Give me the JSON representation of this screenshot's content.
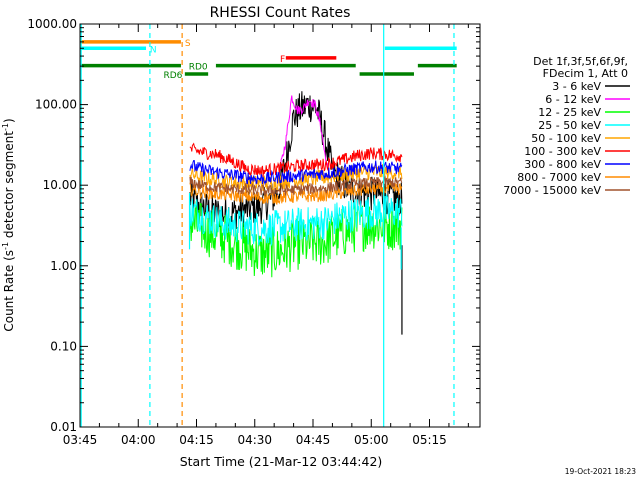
{
  "chart_data": {
    "type": "line",
    "title": "RHESSI Count Rates",
    "xlabel": "Start Time (21-Mar-12 03:44:42)",
    "ylabel_main": "Count Rate (s",
    "ylabel_sup": "-1",
    "ylabel_tail": " detector segment",
    "ylabel_end": ")",
    "yscale": "log",
    "ylim": [
      0.01,
      1000
    ],
    "xlim_minutes": [
      225,
      328
    ],
    "y_ticks": [
      {
        "value": 0.01,
        "label": "0.01"
      },
      {
        "value": 0.1,
        "label": "0.10"
      },
      {
        "value": 1,
        "label": "1.00"
      },
      {
        "value": 10,
        "label": "10.00"
      },
      {
        "value": 100,
        "label": "100.00"
      },
      {
        "value": 1000,
        "label": "1000.00"
      }
    ],
    "x_ticks": [
      {
        "value": 225,
        "label": "03:45"
      },
      {
        "value": 240,
        "label": "04:00"
      },
      {
        "value": 255,
        "label": "04:15"
      },
      {
        "value": 270,
        "label": "04:30"
      },
      {
        "value": 285,
        "label": "04:45"
      },
      {
        "value": 300,
        "label": "05:00"
      },
      {
        "value": 315,
        "label": "05:15"
      }
    ],
    "legend": {
      "header": [
        "Det 1f,3f,5f,6f,9f,",
        "FDecim 1, Att 0"
      ],
      "entries": [
        {
          "label": "3 - 6 keV",
          "color": "#000000"
        },
        {
          "label": "6 - 12 keV",
          "color": "#ff00ff"
        },
        {
          "label": "12 - 25 keV",
          "color": "#00ff00"
        },
        {
          "label": "25 - 50 keV",
          "color": "#00ffff"
        },
        {
          "label": "50 - 100 keV",
          "color": "#ffa500"
        },
        {
          "label": "100 - 300 keV",
          "color": "#ff0000"
        },
        {
          "label": "300 - 800 keV",
          "color": "#0000ff"
        },
        {
          "label": "800 - 7000 keV",
          "color": "#ff8c00"
        },
        {
          "label": "7000 - 15000 keV",
          "color": "#a0522d"
        }
      ]
    },
    "series": [
      {
        "name": "3 - 6 keV",
        "color": "#000000",
        "x": [
          253.3,
          256,
          260,
          264,
          268,
          272,
          276,
          278,
          280,
          282,
          284,
          286,
          288,
          290,
          294,
          298,
          302,
          306,
          307.9
        ],
        "y": [
          7,
          5.5,
          4.5,
          4.5,
          5,
          5.5,
          8,
          20,
          70,
          90,
          100,
          90,
          40,
          15,
          9,
          8,
          7.5,
          7,
          6.5
        ]
      },
      {
        "name": "6 - 12 keV",
        "color": "#ff00ff",
        "x": [
          276,
          278,
          279.5,
          281,
          282.5,
          284,
          285.5,
          287,
          288,
          289
        ],
        "y": [
          12,
          35,
          125,
          85,
          90,
          115,
          100,
          55,
          25,
          14
        ]
      },
      {
        "name": "12 - 25 keV",
        "color": "#00ff00",
        "x": [
          253.3,
          256,
          260,
          264,
          268,
          272,
          276,
          280,
          284,
          288,
          292,
          296,
          300,
          304,
          307.9
        ],
        "y": [
          3.5,
          3,
          2.4,
          2.0,
          1.6,
          1.4,
          1.5,
          1.8,
          1.9,
          2.0,
          2.5,
          3.0,
          3.3,
          3.2,
          3.2
        ]
      },
      {
        "name": "25 - 50 keV",
        "color": "#00ffff",
        "x": [
          253.3,
          256,
          260,
          264,
          268,
          272,
          276,
          280,
          284,
          288,
          292,
          296,
          300,
          304,
          307.9
        ],
        "y": [
          5.0,
          4.3,
          3.6,
          3.2,
          3.0,
          2.9,
          3.0,
          3.2,
          3.3,
          3.5,
          4.0,
          4.4,
          4.7,
          4.7,
          4.7
        ]
      },
      {
        "name": "50 - 100 keV",
        "color": "#ffa500",
        "x": [
          253.3,
          256,
          260,
          264,
          268,
          272,
          276,
          280,
          284,
          288,
          292,
          296,
          300,
          304,
          307.9
        ],
        "y": [
          14,
          12.5,
          11.5,
          11,
          10.5,
          10.5,
          11,
          11.5,
          12,
          12.5,
          13.5,
          14,
          14.5,
          14.5,
          14.5
        ]
      },
      {
        "name": "100 - 300 keV",
        "color": "#ff0000",
        "x": [
          253.3,
          256,
          260,
          264,
          268,
          272,
          276,
          280,
          284,
          288,
          292,
          296,
          300,
          304,
          307.9
        ],
        "y": [
          28,
          26,
          24,
          20,
          16,
          15,
          16,
          17,
          18,
          18,
          20,
          23,
          25,
          24,
          23
        ]
      },
      {
        "name": "300 - 800 keV",
        "color": "#0000ff",
        "x": [
          253.3,
          256,
          260,
          264,
          268,
          272,
          276,
          280,
          284,
          288,
          292,
          296,
          300,
          304,
          307.9
        ],
        "y": [
          18,
          16,
          14.5,
          13.5,
          12.5,
          12,
          12.5,
          13,
          13.5,
          14,
          15,
          16,
          17,
          16.5,
          16
        ]
      },
      {
        "name": "800 - 7000 keV",
        "color": "#ff8c00",
        "x": [
          253.3,
          256,
          260,
          264,
          268,
          272,
          276,
          280,
          284,
          288,
          292,
          296,
          300,
          304,
          307.9
        ],
        "y": [
          9,
          8.3,
          7.8,
          7.5,
          7.2,
          7.0,
          7.0,
          7.2,
          7.3,
          7.5,
          8.0,
          8.5,
          9.0,
          9.0,
          9.0
        ]
      },
      {
        "name": "7000 - 15000 keV",
        "color": "#a0522d",
        "x": [
          253.3,
          256,
          260,
          264,
          268,
          272,
          276,
          280,
          284,
          288,
          292,
          296,
          300,
          304,
          307.9
        ],
        "y": [
          11,
          10,
          9.4,
          9.0,
          8.8,
          8.6,
          8.6,
          8.8,
          9.0,
          9.2,
          9.8,
          10.3,
          10.8,
          10.8,
          10.8
        ]
      }
    ],
    "attenuator_intervals": [
      {
        "label": "S",
        "color": "#ff8c00",
        "x_start": 225,
        "x_end": 251,
        "level": 600,
        "label_at": 252
      },
      {
        "label": "N",
        "color": "#00ffff",
        "x_start": 225,
        "x_end": 242,
        "level": 500,
        "label_at": 243
      },
      {
        "label": "N",
        "color": "#00ffff",
        "x_start": 303.5,
        "x_end": 322,
        "level": 500,
        "label_at": null
      },
      {
        "label": "F",
        "color": "#ff0000",
        "x_start": 278,
        "x_end": 291,
        "level": 380,
        "label_at": 276.5
      },
      {
        "label": "RD0",
        "color": "#008000",
        "x_start": 225,
        "x_end": 251,
        "level": 305,
        "label_at": 253
      },
      {
        "label": "RD0",
        "color": "#008000",
        "x_start": 260,
        "x_end": 296,
        "level": 305,
        "label_at": null
      },
      {
        "label": "RD0",
        "color": "#008000",
        "x_start": 312,
        "x_end": 322,
        "level": 305,
        "label_at": null
      },
      {
        "label": "RD6",
        "color": "#008000",
        "x_start": 252,
        "x_end": 258,
        "level": 240,
        "label_at": 246.5
      },
      {
        "label": "RD6",
        "color": "#008000",
        "x_start": 297,
        "x_end": 311,
        "level": 240,
        "label_at": null
      }
    ],
    "vertical_markers": [
      {
        "x": 225.3,
        "color": "#00ffff",
        "style": "solid"
      },
      {
        "x": 243.0,
        "color": "#00ffff",
        "style": "dashed"
      },
      {
        "x": 251.3,
        "color": "#ff8c00",
        "style": "dashed"
      },
      {
        "x": 303.2,
        "color": "#00ffff",
        "style": "solid"
      },
      {
        "x": 321.3,
        "color": "#00ffff",
        "style": "dashed"
      }
    ],
    "footer_timestamp": "19-Oct-2021 18:23"
  }
}
